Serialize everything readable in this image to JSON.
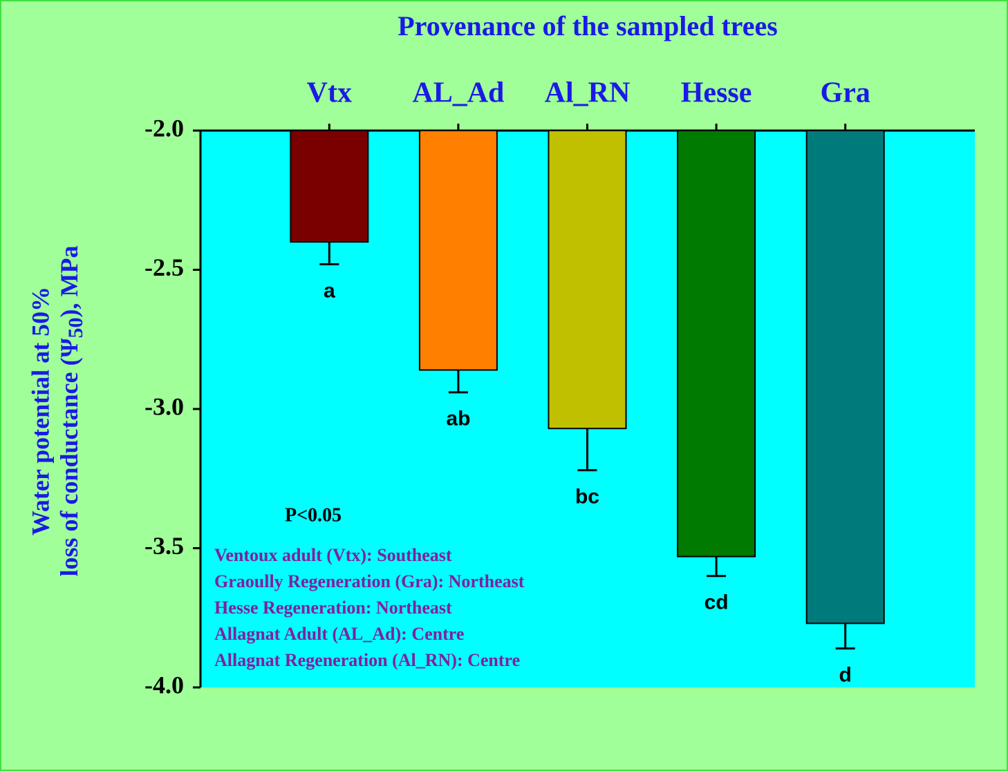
{
  "chart_data": {
    "type": "bar",
    "title": "Provenance of the sampled trees",
    "y_label_lines": [
      "Water potential at 50%",
      [
        "loss of conductance (Ψ",
        "50",
        "), MPa"
      ]
    ],
    "categories": [
      "Vtx",
      "AL_Ad",
      "Al_RN",
      "Hesse",
      "Gra"
    ],
    "values": [
      -2.4,
      -2.86,
      -3.07,
      -3.53,
      -3.77
    ],
    "errors": [
      0.08,
      0.08,
      0.15,
      0.07,
      0.09
    ],
    "colors": [
      "#7a0000",
      "#ff8000",
      "#c0c000",
      "#007a00",
      "#007a7a"
    ],
    "letters": [
      "a",
      "ab",
      "bc",
      "cd",
      "d"
    ],
    "ylim": [
      -4.0,
      -2.0
    ],
    "yticks": [
      {
        "value": -2.0,
        "label": "-2.0"
      },
      {
        "value": -2.5,
        "label": "-2.5"
      },
      {
        "value": -3.0,
        "label": "-3.0"
      },
      {
        "value": -3.5,
        "label": "-3.5"
      },
      {
        "value": -4.0,
        "label": "-4.0"
      }
    ],
    "annotation": "P<0.05",
    "notes": [
      "Ventoux adult (Vtx): Southeast",
      "Graoully Regeneration (Gra): Northeast",
      "Hesse Regeneration: Northeast",
      "Allagnat Adult (AL_Ad): Centre",
      "Allagnat Regeneration (Al_RN): Centre"
    ]
  }
}
